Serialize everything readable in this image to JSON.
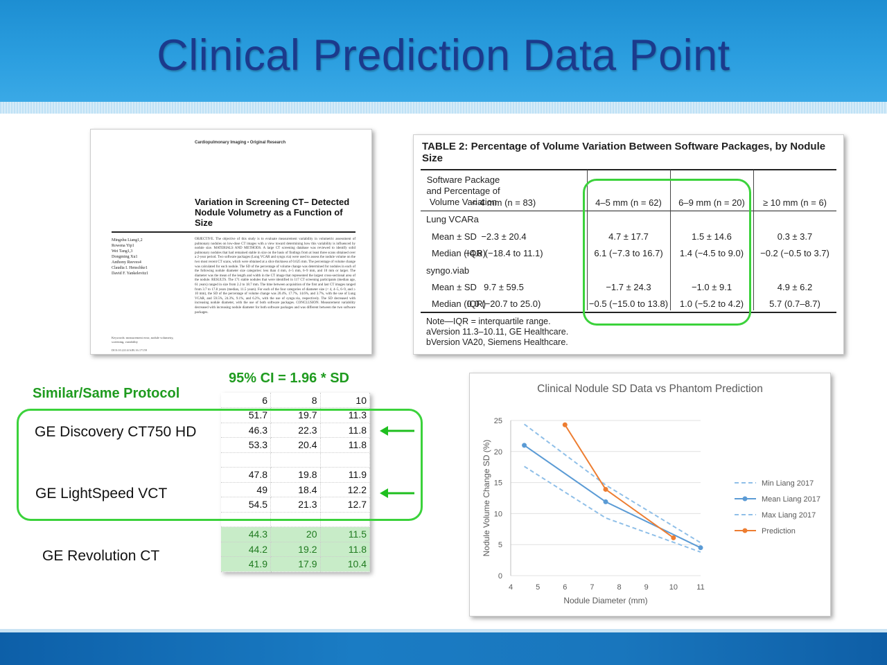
{
  "slide": {
    "title": "Clinical Prediction Data Point"
  },
  "paper": {
    "journal": "Cardiopulmonary Imaging • Original Research",
    "title": "Variation in Screening CT– Detected Nodule Volumetry as a Function of Size",
    "authors": [
      "Mingzhu Liang1,2",
      "Rowena Yip1",
      "Wei Tang1,3",
      "Dongming Xu1",
      "Anthony Reeves4",
      "Claudia I. Henschke1",
      "David F. Yankelevitz1"
    ],
    "abstract": "OBJECTIVE. The objective of this study is to evaluate measurement variability in volumetric assessment of pulmonary nodules on low-dose CT images with a view toward determining how this variability is influenced by nodule size. MATERIALS AND METHODS. A large CT screening database was reviewed to identify solid pulmonary nodules that had remained stable in size on the basis of findings from at least three scans obtained over a 2-year period. Two software packages (Lung VCAR and syngo.via) were used to assess the nodule volume on the two most recent CT scans, which were obtained at a slice thickness of 0.625 mm. The percentage of volume change was calculated for each nodule. The SD of the percentage of volume change was determined for nodules in each of the following nodule diameter size categories: less than 4 mm, 4–5 mm, 6–9 mm, and 10 mm or larger. The diameter was the mean of the length and width in the CT image that represented the largest cross-sectional area of the nodule. RESULTS. The 171 stable nodules that were identified in 117 CT screening participants (median age, 61 years) ranged in size from 2.2 to 18.7 mm. The time between acquisition of the first and last CT images ranged from 3.7 to 17.8 years (median, 11.5 years). For each of the four categories of diameter size (< 4, 4–5, 6–9, and ≥ 10 mm), the SD of the percentage of volume change was 20.4%, 17.7%, 14.6%, and 3.7%, with the use of Lung VCAR, and 59.5%, 24.3%, 9.1%, and 6.2%, with the use of syngo.via, respectively. The SD decreased with increasing nodule diameter, with the use of both software packages. CONCLUSION. Measurement variability decreased with increasing nodule diameter for both software packages and was different between the two software packages.",
    "keywords": "Keywords: measurement error, nodule volumetry, screening, variability",
    "doi": "DOI:10.2214/AJR.16.17159"
  },
  "table2": {
    "caption_label": "TABLE 2:",
    "caption_text": "Percentage of Volume Variation Between Software Packages, by Nodule Size",
    "col_headers": [
      "Software Package and Percentage of Volume Variation",
      "< 4 mm (n = 83)",
      "4–5 mm (n = 62)",
      "6–9 mm (n = 20)",
      "≥ 10 mm (n = 6)"
    ],
    "rows": [
      {
        "label": "Lung VCARa",
        "indent": false,
        "values": [
          "",
          "",
          "",
          ""
        ]
      },
      {
        "label": "Mean ± SD",
        "indent": true,
        "values": [
          "−2.3 ± 20.4",
          "4.7 ± 17.7",
          "1.5 ± 14.6",
          "0.3 ± 3.7"
        ]
      },
      {
        "label": "Median (IQR)",
        "indent": true,
        "values": [
          "−4.8 (−18.4 to 11.1)",
          "6.1 (−7.3 to 16.7)",
          "1.4 (−4.5 to 9.0)",
          "−0.2 (−0.5 to 3.7)"
        ]
      },
      {
        "label": "syngo.viab",
        "indent": false,
        "values": [
          "",
          "",
          "",
          ""
        ]
      },
      {
        "label": "Mean ± SD",
        "indent": true,
        "values": [
          "9.7 ± 59.5",
          "−1.7 ± 24.3",
          "−1.0 ± 9.1",
          "4.9 ± 6.2"
        ]
      },
      {
        "label": "Median (IQR)",
        "indent": true,
        "values": [
          "0.0 (−20.7 to 25.0)",
          "−0.5 (−15.0 to 13.8)",
          "1.0 (−5.2 to 4.2)",
          "5.7 (0.7–8.7)"
        ]
      }
    ],
    "notes": [
      "Note—IQR = interquartile range.",
      "aVersion 11.3–10.11, GE Healthcare.",
      "bVersion VA20, Siemens Healthcare."
    ]
  },
  "protocol": {
    "ci_label": "95% CI = 1.96 * SD",
    "similar_label": "Similar/Same Protocol",
    "scanners": [
      "GE Discovery CT750 HD",
      "GE LightSpeed VCT",
      "GE Revolution CT"
    ],
    "grid_header": [
      "6",
      "8",
      "10"
    ],
    "grid_rows": [
      [
        "51.7",
        "19.7",
        "11.3"
      ],
      [
        "46.3",
        "22.3",
        "11.8"
      ],
      [
        "53.3",
        "20.4",
        "11.8"
      ],
      [
        "",
        "",
        ""
      ],
      [
        "47.8",
        "19.8",
        "11.9"
      ],
      [
        "49",
        "18.4",
        "12.2"
      ],
      [
        "54.5",
        "21.3",
        "12.7"
      ],
      [
        "",
        "",
        ""
      ],
      [
        "44.3",
        "20",
        "11.5"
      ],
      [
        "44.2",
        "19.2",
        "11.8"
      ],
      [
        "41.9",
        "17.9",
        "10.4"
      ]
    ],
    "green_rows": [
      8,
      9,
      10
    ],
    "colors": {
      "highlight": "#3bd23b",
      "label_green": "#1f9b1f",
      "row_green": "#c8ecc8"
    }
  },
  "chart_data": {
    "type": "line",
    "title": "Clinical Nodule SD Data vs Phantom Prediction",
    "xlabel": "Nodule Diameter (mm)",
    "ylabel": "Nodule Volume Change SD (%)",
    "xlim": [
      4,
      11
    ],
    "ylim": [
      0,
      25
    ],
    "xticks": [
      4,
      5,
      6,
      7,
      8,
      9,
      10,
      11
    ],
    "yticks": [
      0,
      5,
      10,
      15,
      20,
      25
    ],
    "legend_position": "right",
    "series": [
      {
        "name": "Min Liang 2017",
        "color": "#8fbfe8",
        "dash": true,
        "marker": false,
        "x": [
          4.5,
          7.5,
          11
        ],
        "y": [
          17.6,
          9.3,
          3.8
        ]
      },
      {
        "name": "Mean Liang 2017",
        "color": "#5b9bd5",
        "dash": false,
        "marker": true,
        "x": [
          4.5,
          7.5,
          11
        ],
        "y": [
          21,
          11.9,
          4.5
        ]
      },
      {
        "name": "Max Liang 2017",
        "color": "#8fbfe8",
        "dash": true,
        "marker": false,
        "x": [
          4.5,
          7.5,
          11
        ],
        "y": [
          24.4,
          14.6,
          5.3
        ]
      },
      {
        "name": "Prediction",
        "color": "#ed7d31",
        "dash": false,
        "marker": true,
        "x": [
          6,
          7.5,
          10
        ],
        "y": [
          24.3,
          13.9,
          6.1
        ]
      }
    ]
  }
}
